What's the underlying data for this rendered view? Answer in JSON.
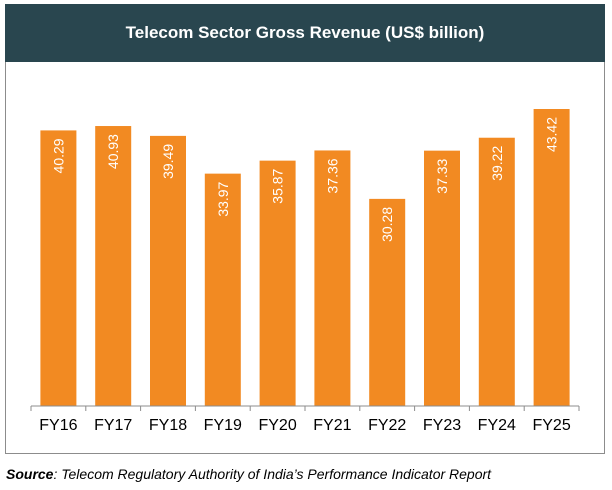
{
  "chart_data": {
    "type": "bar",
    "title": "Telecom Sector Gross Revenue (US$ billion)",
    "categories": [
      "FY16",
      "FY17",
      "FY18",
      "FY19",
      "FY20",
      "FY21",
      "FY22",
      "FY23",
      "FY24",
      "FY25"
    ],
    "values": [
      40.29,
      40.93,
      39.49,
      33.97,
      35.87,
      37.36,
      30.28,
      37.33,
      39.22,
      43.42
    ],
    "value_labels": [
      "40.29",
      "40.93",
      "39.49",
      "33.97",
      "35.87",
      "37.36",
      "30.28",
      "37.33",
      "39.22",
      "43.42"
    ],
    "xlabel": "",
    "ylabel": "",
    "ylim": [
      0,
      43.42
    ],
    "grid": false,
    "data_labels": "inside-end, rotated vertical",
    "colors": {
      "bar": "#f28a22",
      "header": "#29464f",
      "label": "#ffffff"
    }
  },
  "source": {
    "prefix": "Source",
    "text": ": Telecom Regulatory Authority of India’s Performance Indicator Report"
  }
}
